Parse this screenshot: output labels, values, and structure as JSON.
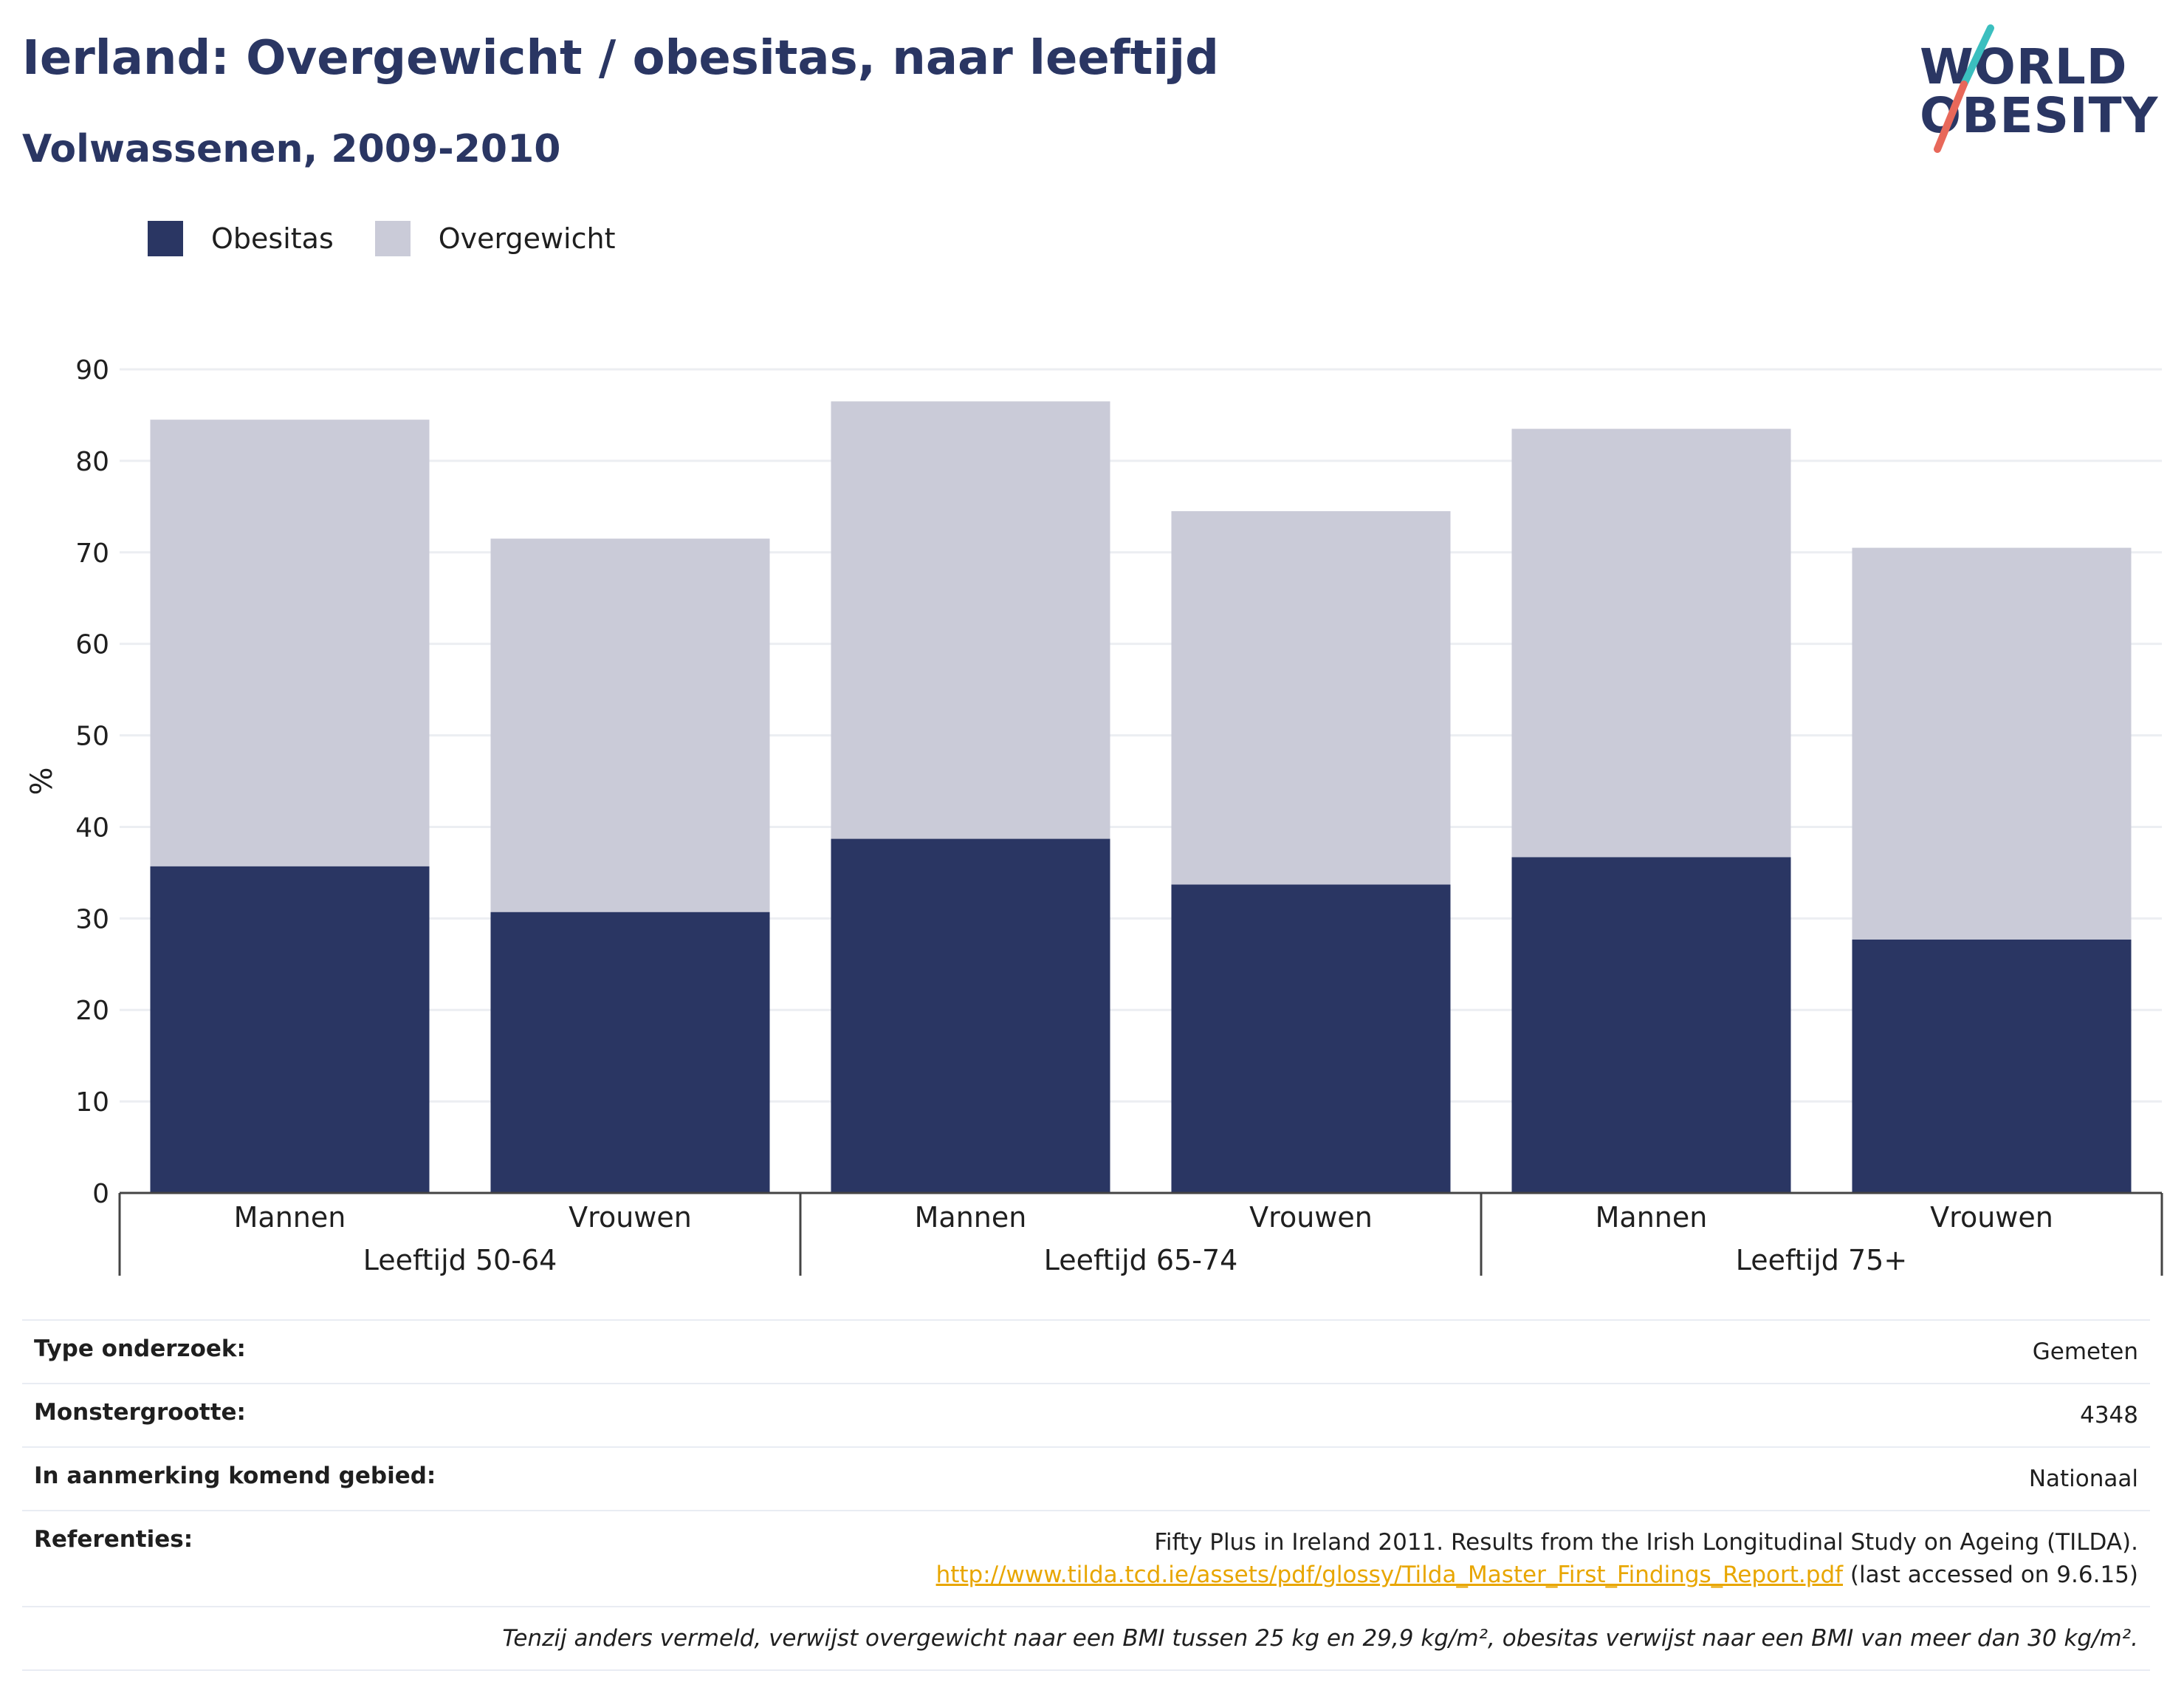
{
  "header": {
    "title": "Ierland: Overgewicht / obesitas, naar leeftijd",
    "subtitle": "Volwassenen, 2009-2010"
  },
  "logo": {
    "line1": "WORLD",
    "line2": "OBESITY",
    "colors": {
      "text": "#2a3663",
      "slash_top": "#3bbfbf",
      "slash_bottom": "#e8685a"
    }
  },
  "legend": [
    {
      "label": "Obesitas",
      "color": "#2a3663"
    },
    {
      "label": "Overgewicht",
      "color": "#cacbd8"
    }
  ],
  "chart_data": {
    "type": "bar",
    "stacked": true,
    "ylabel": "%",
    "ylim": [
      0,
      90
    ],
    "yticks": [
      0,
      10,
      20,
      30,
      40,
      50,
      60,
      70,
      80,
      90
    ],
    "grid": true,
    "groups": [
      {
        "label": "Leeftijd 50-64",
        "categories": [
          "Mannen",
          "Vrouwen"
        ]
      },
      {
        "label": "Leeftijd 65-74",
        "categories": [
          "Mannen",
          "Vrouwen"
        ]
      },
      {
        "label": "Leeftijd 75+",
        "categories": [
          "Mannen",
          "Vrouwen"
        ]
      }
    ],
    "series": [
      {
        "name": "Obesitas",
        "color": "#2a3663",
        "values": [
          35.7,
          30.7,
          38.7,
          33.7,
          36.7,
          27.7
        ]
      },
      {
        "name": "Overgewicht",
        "color": "#cacbd8",
        "values": [
          48.8,
          40.8,
          47.8,
          40.8,
          46.8,
          42.8
        ]
      }
    ]
  },
  "meta": {
    "rows": [
      {
        "label": "Type onderzoek:",
        "value": "Gemeten"
      },
      {
        "label": "Monstergrootte:",
        "value": "4348"
      },
      {
        "label": "In aanmerking komend gebied:",
        "value": "Nationaal"
      }
    ],
    "references": {
      "label": "Referenties:",
      "line1": "Fifty Plus in Ireland 2011. Results from the Irish Longitudinal Study on Ageing (TILDA).",
      "link": "http://www.tilda.tcd.ie/assets/pdf/glossy/Tilda_Master_First_Findings_Report.pdf",
      "suffix": " (last accessed on 9.6.15)"
    },
    "note": "Tenzij anders vermeld, verwijst overgewicht naar een BMI tussen 25 kg en 29,9 kg/m², obesitas verwijst naar een BMI van meer dan 30 kg/m²."
  }
}
